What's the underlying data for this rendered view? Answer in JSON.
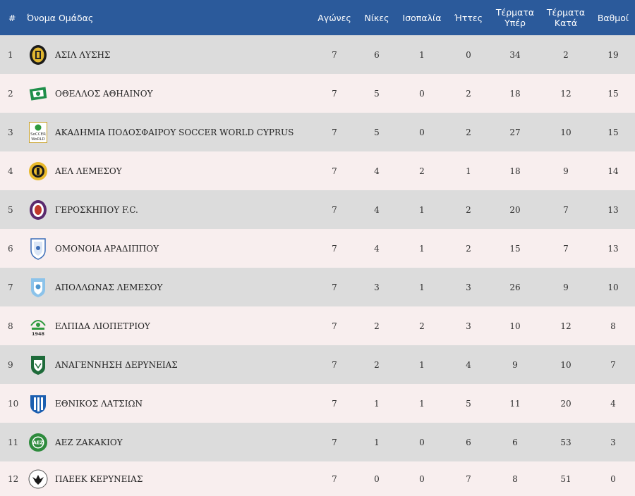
{
  "headers": {
    "rank": "#",
    "team": "Όνομα Ομάδας",
    "played": "Αγώνες",
    "wins": "Νίκες",
    "draws": "Ισοπαλία",
    "losses": "Ήττες",
    "goals_for_1": "Τέρματα",
    "goals_for_2": "Υπέρ",
    "goals_against_1": "Τέρματα",
    "goals_against_2": "Κατά",
    "points": "Βαθμοί"
  },
  "rows": [
    {
      "rank": "1",
      "team": "ΑΣΙΛ ΛΥΣΗΣ",
      "logo": "asil-lysis-crest-icon",
      "played": "7",
      "wins": "6",
      "draws": "1",
      "losses": "0",
      "gf": "34",
      "ga": "2",
      "pts": "19"
    },
    {
      "rank": "2",
      "team": "ΟΘΕΛΛΟΣ ΑΘΗΑΙΝΟΥ",
      "logo": "othellos-crest-icon",
      "played": "7",
      "wins": "5",
      "draws": "0",
      "losses": "2",
      "gf": "18",
      "ga": "12",
      "pts": "15"
    },
    {
      "rank": "3",
      "team": "ΑΚΑΔΗΜΙΑ ΠΟΔΟΣΦΑΙΡΟΥ SOCCER WORLD CYPRUS",
      "logo": "soccer-world-crest-icon",
      "logo_text_1": "SoCCER",
      "logo_text_2": "WoRLD",
      "played": "7",
      "wins": "5",
      "draws": "0",
      "losses": "2",
      "gf": "27",
      "ga": "10",
      "pts": "15"
    },
    {
      "rank": "4",
      "team": "ΑΕΛ ΛΕΜΕΣΟΥ",
      "logo": "ael-crest-icon",
      "played": "7",
      "wins": "4",
      "draws": "2",
      "losses": "1",
      "gf": "18",
      "ga": "9",
      "pts": "14"
    },
    {
      "rank": "5",
      "team": "ΓΕΡΟΣΚΗΠΟΥ F.C.",
      "logo": "geroskipou-crest-icon",
      "played": "7",
      "wins": "4",
      "draws": "1",
      "losses": "2",
      "gf": "20",
      "ga": "7",
      "pts": "13"
    },
    {
      "rank": "6",
      "team": "ΟΜΟΝΟΙΑ ΑΡΑΔΙΠΠΟΥ",
      "logo": "omonoia-aradippou-crest-icon",
      "played": "7",
      "wins": "4",
      "draws": "1",
      "losses": "2",
      "gf": "15",
      "ga": "7",
      "pts": "13"
    },
    {
      "rank": "7",
      "team": "ΑΠΟΛΛΩΝΑΣ ΛΕΜΕΣΟΥ",
      "logo": "apollon-crest-icon",
      "played": "7",
      "wins": "3",
      "draws": "1",
      "losses": "3",
      "gf": "26",
      "ga": "9",
      "pts": "10"
    },
    {
      "rank": "8",
      "team": "ΕΛΠΙΔΑ ΛΙΟΠΕΤΡΙΟΥ",
      "logo": "elpida-crest-icon",
      "logo_text_1": "1948",
      "played": "7",
      "wins": "2",
      "draws": "2",
      "losses": "3",
      "gf": "10",
      "ga": "12",
      "pts": "8"
    },
    {
      "rank": "9",
      "team": "ΑΝΑΓΕΝΝΗΣΗ ΔΕΡΥΝΕΙΑΣ",
      "logo": "anagennisi-crest-icon",
      "played": "7",
      "wins": "2",
      "draws": "1",
      "losses": "4",
      "gf": "9",
      "ga": "10",
      "pts": "7"
    },
    {
      "rank": "10",
      "team": "ΕΘΝΙΚΟΣ ΛΑΤΣΙΩΝ",
      "logo": "ethnikos-crest-icon",
      "played": "7",
      "wins": "1",
      "draws": "1",
      "losses": "5",
      "gf": "11",
      "ga": "20",
      "pts": "4"
    },
    {
      "rank": "11",
      "team": "ΑΕΖ ΖΑΚΑΚΙΟΥ",
      "logo": "aez-crest-icon",
      "logo_text_1": "ΑΕΖ",
      "played": "7",
      "wins": "1",
      "draws": "0",
      "losses": "6",
      "gf": "6",
      "ga": "53",
      "pts": "3"
    },
    {
      "rank": "12",
      "team": "ΠΑΕΕΚ ΚΕΡΥΝΕΙΑΣ",
      "logo": "paeek-crest-icon",
      "played": "7",
      "wins": "0",
      "draws": "0",
      "losses": "7",
      "gf": "8",
      "ga": "51",
      "pts": "0"
    }
  ],
  "colors": {
    "header_bg": "#2b5a9b",
    "row_odd": "#dcdcdc",
    "row_even": "#f8eeee"
  }
}
